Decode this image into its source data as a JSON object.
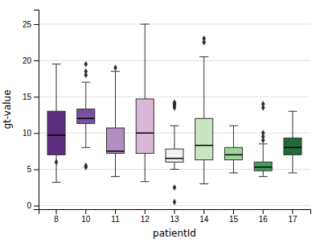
{
  "chart_data": {
    "type": "box",
    "xlabel": "patientId",
    "ylabel": "gt-value",
    "categories": [
      "8",
      "10",
      "11",
      "12",
      "13",
      "14",
      "15",
      "16",
      "17"
    ],
    "boxes": [
      {
        "q1": 7.0,
        "median": 9.7,
        "q3": 13.0,
        "whislo": 3.2,
        "whishi": 19.5,
        "fliers": [
          6.0
        ]
      },
      {
        "q1": 11.3,
        "median": 12.0,
        "q3": 13.3,
        "whislo": 8.0,
        "whishi": 17.0,
        "fliers": [
          5.3,
          5.5,
          18.0,
          18.5,
          19.5
        ]
      },
      {
        "q1": 7.2,
        "median": 7.5,
        "q3": 10.7,
        "whislo": 4.0,
        "whishi": 18.5,
        "fliers": [
          19.0
        ]
      },
      {
        "q1": 7.2,
        "median": 10.0,
        "q3": 14.7,
        "whislo": 3.3,
        "whishi": 25.0,
        "fliers": []
      },
      {
        "q1": 6.0,
        "median": 6.5,
        "q3": 7.8,
        "whislo": 5.0,
        "whishi": 11.0,
        "fliers": [
          13.5,
          13.8,
          14.0,
          14.2,
          2.5,
          0.5
        ]
      },
      {
        "q1": 6.3,
        "median": 8.3,
        "q3": 12.0,
        "whislo": 3.0,
        "whishi": 20.5,
        "fliers": [
          22.5,
          23.0
        ]
      },
      {
        "q1": 6.3,
        "median": 7.0,
        "q3": 8.0,
        "whislo": 4.5,
        "whishi": 11.0,
        "fliers": []
      },
      {
        "q1": 4.8,
        "median": 5.3,
        "q3": 6.0,
        "whislo": 4.0,
        "whishi": 8.5,
        "fliers": [
          9.0,
          9.5,
          10.0,
          13.5,
          14.0
        ]
      },
      {
        "q1": 7.0,
        "median": 8.0,
        "q3": 9.3,
        "whislo": 4.5,
        "whishi": 13.0,
        "fliers": []
      }
    ],
    "colors": [
      "#5c2d7e",
      "#7b4fa0",
      "#b08ec0",
      "#dbb8d8",
      "#f2f2f2",
      "#c8e6c0",
      "#9dd49a",
      "#4a9e5c",
      "#1f6b3a"
    ],
    "ylim": [
      -0.5,
      27
    ],
    "yticks": [
      0,
      5,
      10,
      15,
      20,
      25
    ],
    "grid": true
  }
}
